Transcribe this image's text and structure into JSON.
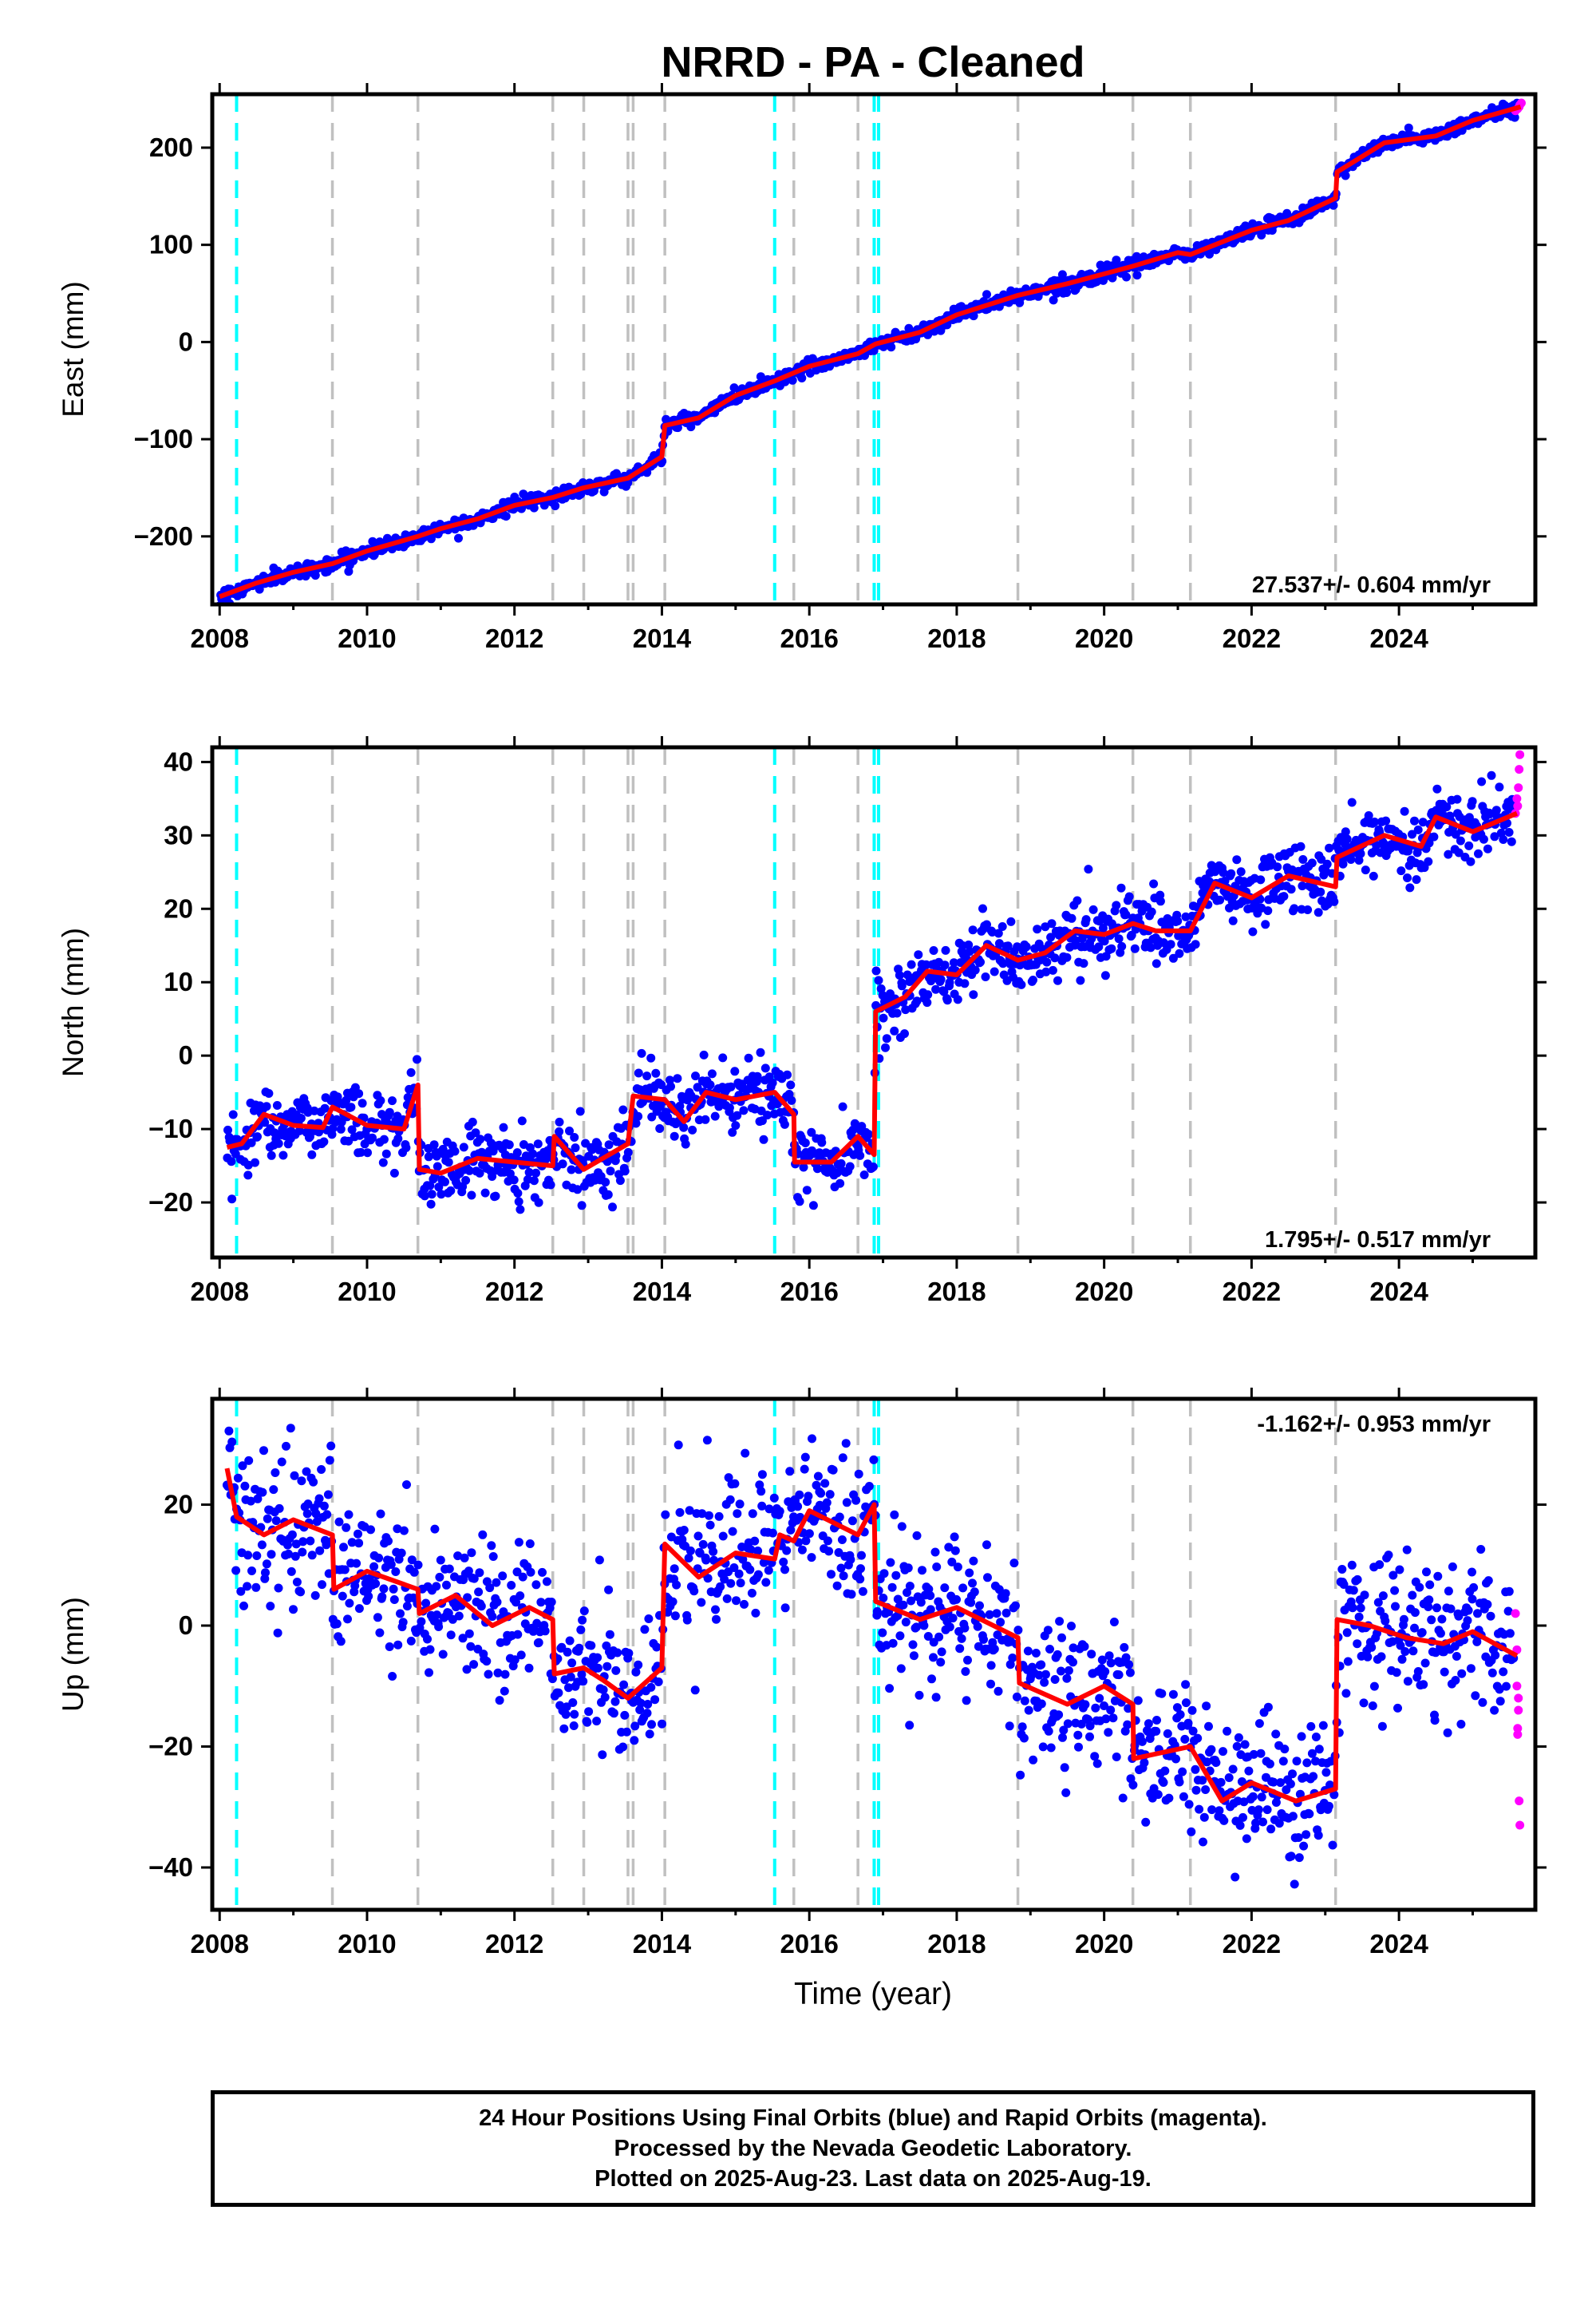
{
  "title": "NRRD  - PA - Cleaned",
  "xlabel": "Time (year)",
  "x_ticks": [
    "2008",
    "2010",
    "2012",
    "2014",
    "2016",
    "2018",
    "2020",
    "2022",
    "2024"
  ],
  "colors": {
    "final_orbits": "#0000ff",
    "rapid_orbits": "#ff00ff",
    "model": "#ff0000",
    "event_cyan": "#00ffff",
    "event_gray": "#c0c0c0"
  },
  "events": {
    "cyan": [
      2008.23,
      2015.53,
      2016.88,
      2016.94
    ],
    "gray": [
      2009.53,
      2010.69,
      2012.52,
      2012.94,
      2013.54,
      2013.61,
      2014.04,
      2015.79,
      2016.66,
      2018.83,
      2020.39,
      2021.17,
      2023.14
    ]
  },
  "footer": {
    "line1": "24 Hour Positions Using Final Orbits (blue) and Rapid Orbits (magenta).",
    "line2": "Processed by the Nevada Geodetic Laboratory.",
    "line3": "Plotted on 2025-Aug-23. Last data on 2025-Aug-19."
  },
  "chart_data": [
    {
      "type": "scatter",
      "component": "east",
      "ylabel": "East (mm)",
      "rate_label": "27.537+/- 0.604 mm/yr",
      "xlim": [
        2007.9,
        2025.85
      ],
      "ylim": [
        -270,
        255
      ],
      "y_ticks": [
        -200,
        -100,
        0,
        100,
        200
      ],
      "y_tick_labels": [
        "−200",
        "−100",
        "0",
        "100",
        "200"
      ],
      "noise_mm": 3.5,
      "model": [
        [
          2008.0,
          -262
        ],
        [
          2008.5,
          -248
        ],
        [
          2009.0,
          -237
        ],
        [
          2009.53,
          -228
        ],
        [
          2010.0,
          -215
        ],
        [
          2010.69,
          -200
        ],
        [
          2011.0,
          -192
        ],
        [
          2011.5,
          -182
        ],
        [
          2012.0,
          -168
        ],
        [
          2012.52,
          -160
        ],
        [
          2012.94,
          -150
        ],
        [
          2013.54,
          -140
        ],
        [
          2014.0,
          -118
        ],
        [
          2014.04,
          -86
        ],
        [
          2014.5,
          -78
        ],
        [
          2015.0,
          -55
        ],
        [
          2015.53,
          -40
        ],
        [
          2016.0,
          -25
        ],
        [
          2016.66,
          -12
        ],
        [
          2016.9,
          -2
        ],
        [
          2017.5,
          10
        ],
        [
          2018.0,
          28
        ],
        [
          2018.83,
          48
        ],
        [
          2019.5,
          60
        ],
        [
          2020.39,
          78
        ],
        [
          2021.0,
          92
        ],
        [
          2021.17,
          90
        ],
        [
          2022.0,
          115
        ],
        [
          2022.5,
          125
        ],
        [
          2023.14,
          148
        ],
        [
          2023.16,
          175
        ],
        [
          2023.8,
          205
        ],
        [
          2024.5,
          212
        ],
        [
          2025.0,
          228
        ],
        [
          2025.65,
          242
        ]
      ],
      "rapid_tail": [
        [
          2025.58,
          238
        ],
        [
          2025.61,
          240
        ],
        [
          2025.64,
          244
        ],
        [
          2025.66,
          246
        ],
        [
          2025.63,
          242
        ]
      ]
    },
    {
      "type": "scatter",
      "component": "north",
      "ylabel": "North (mm)",
      "rate_label": "1.795+/- 0.517 mm/yr",
      "xlim": [
        2007.9,
        2025.85
      ],
      "ylim": [
        -27.5,
        42
      ],
      "y_ticks": [
        -20,
        -10,
        0,
        10,
        20,
        30,
        40
      ],
      "y_tick_labels": [
        "−20",
        "−10",
        "0",
        "10",
        "20",
        "30",
        "40"
      ],
      "noise_mm": 2.3,
      "model": [
        [
          2008.1,
          -12.5
        ],
        [
          2008.3,
          -12
        ],
        [
          2008.6,
          -8
        ],
        [
          2009.0,
          -9.5
        ],
        [
          2009.4,
          -9.8
        ],
        [
          2009.53,
          -7
        ],
        [
          2010.0,
          -9.5
        ],
        [
          2010.5,
          -10
        ],
        [
          2010.69,
          -4
        ],
        [
          2010.71,
          -15.5
        ],
        [
          2011.0,
          -16
        ],
        [
          2011.5,
          -14
        ],
        [
          2012.0,
          -14.5
        ],
        [
          2012.52,
          -15
        ],
        [
          2012.54,
          -11
        ],
        [
          2012.94,
          -15.5
        ],
        [
          2013.54,
          -12
        ],
        [
          2013.61,
          -5.5
        ],
        [
          2014.04,
          -6
        ],
        [
          2014.3,
          -9
        ],
        [
          2014.6,
          -5
        ],
        [
          2015.0,
          -6
        ],
        [
          2015.53,
          -5
        ],
        [
          2015.79,
          -8
        ],
        [
          2015.8,
          -14.5
        ],
        [
          2016.3,
          -14.5
        ],
        [
          2016.66,
          -11
        ],
        [
          2016.88,
          -13.5
        ],
        [
          2016.9,
          6
        ],
        [
          2017.3,
          8
        ],
        [
          2017.6,
          11.5
        ],
        [
          2018.0,
          11
        ],
        [
          2018.4,
          15
        ],
        [
          2018.83,
          13
        ],
        [
          2019.2,
          14
        ],
        [
          2019.6,
          17
        ],
        [
          2020.0,
          16.5
        ],
        [
          2020.39,
          18
        ],
        [
          2020.7,
          17
        ],
        [
          2021.17,
          17
        ],
        [
          2021.5,
          23.5
        ],
        [
          2022.0,
          21.5
        ],
        [
          2022.5,
          24.5
        ],
        [
          2023.14,
          23
        ],
        [
          2023.16,
          27
        ],
        [
          2023.8,
          30
        ],
        [
          2024.3,
          28.5
        ],
        [
          2024.5,
          32.5
        ],
        [
          2025.0,
          30.5
        ],
        [
          2025.6,
          33
        ]
      ],
      "rapid_tail": [
        [
          2025.58,
          33
        ],
        [
          2025.6,
          35
        ],
        [
          2025.62,
          36.5
        ],
        [
          2025.64,
          41
        ],
        [
          2025.61,
          34
        ],
        [
          2025.63,
          39
        ]
      ]
    },
    {
      "type": "scatter",
      "component": "up",
      "ylabel": "Up (mm)",
      "rate_label": "-1.162+/- 0.953 mm/yr",
      "xlim": [
        2007.9,
        2025.85
      ],
      "ylim": [
        -47,
        37.5
      ],
      "y_ticks": [
        -40,
        -20,
        0,
        20
      ],
      "y_tick_labels": [
        "−40",
        "−20",
        "0",
        "20"
      ],
      "noise_mm": 6,
      "model": [
        [
          2008.1,
          26
        ],
        [
          2008.23,
          18
        ],
        [
          2008.6,
          15
        ],
        [
          2009.0,
          17.5
        ],
        [
          2009.53,
          15
        ],
        [
          2009.55,
          6
        ],
        [
          2010.0,
          9
        ],
        [
          2010.69,
          6
        ],
        [
          2010.71,
          2
        ],
        [
          2011.2,
          5
        ],
        [
          2011.7,
          0
        ],
        [
          2012.2,
          3
        ],
        [
          2012.52,
          1
        ],
        [
          2012.54,
          -8
        ],
        [
          2012.94,
          -7
        ],
        [
          2013.2,
          -9
        ],
        [
          2013.54,
          -12
        ],
        [
          2014.0,
          -7
        ],
        [
          2014.04,
          13.5
        ],
        [
          2014.5,
          8
        ],
        [
          2015.0,
          12
        ],
        [
          2015.53,
          11
        ],
        [
          2015.6,
          15
        ],
        [
          2015.79,
          14
        ],
        [
          2016.0,
          19
        ],
        [
          2016.66,
          15
        ],
        [
          2016.88,
          20
        ],
        [
          2016.9,
          4
        ],
        [
          2017.5,
          1
        ],
        [
          2018.0,
          3
        ],
        [
          2018.83,
          -2
        ],
        [
          2018.85,
          -9.5
        ],
        [
          2019.5,
          -13
        ],
        [
          2020.0,
          -10
        ],
        [
          2020.39,
          -13
        ],
        [
          2020.4,
          -22
        ],
        [
          2021.17,
          -20
        ],
        [
          2021.6,
          -29
        ],
        [
          2022.0,
          -26
        ],
        [
          2022.6,
          -29
        ],
        [
          2023.14,
          -27
        ],
        [
          2023.16,
          1
        ],
        [
          2023.6,
          0
        ],
        [
          2024.1,
          -2
        ],
        [
          2024.6,
          -3
        ],
        [
          2025.0,
          -1
        ],
        [
          2025.6,
          -5
        ]
      ],
      "rapid_tail": [
        [
          2025.58,
          2
        ],
        [
          2025.6,
          -10
        ],
        [
          2025.61,
          -17
        ],
        [
          2025.62,
          -14
        ],
        [
          2025.63,
          -29
        ],
        [
          2025.64,
          -33
        ],
        [
          2025.6,
          -4
        ],
        [
          2025.62,
          -12
        ],
        [
          2025.61,
          -18
        ]
      ]
    }
  ]
}
